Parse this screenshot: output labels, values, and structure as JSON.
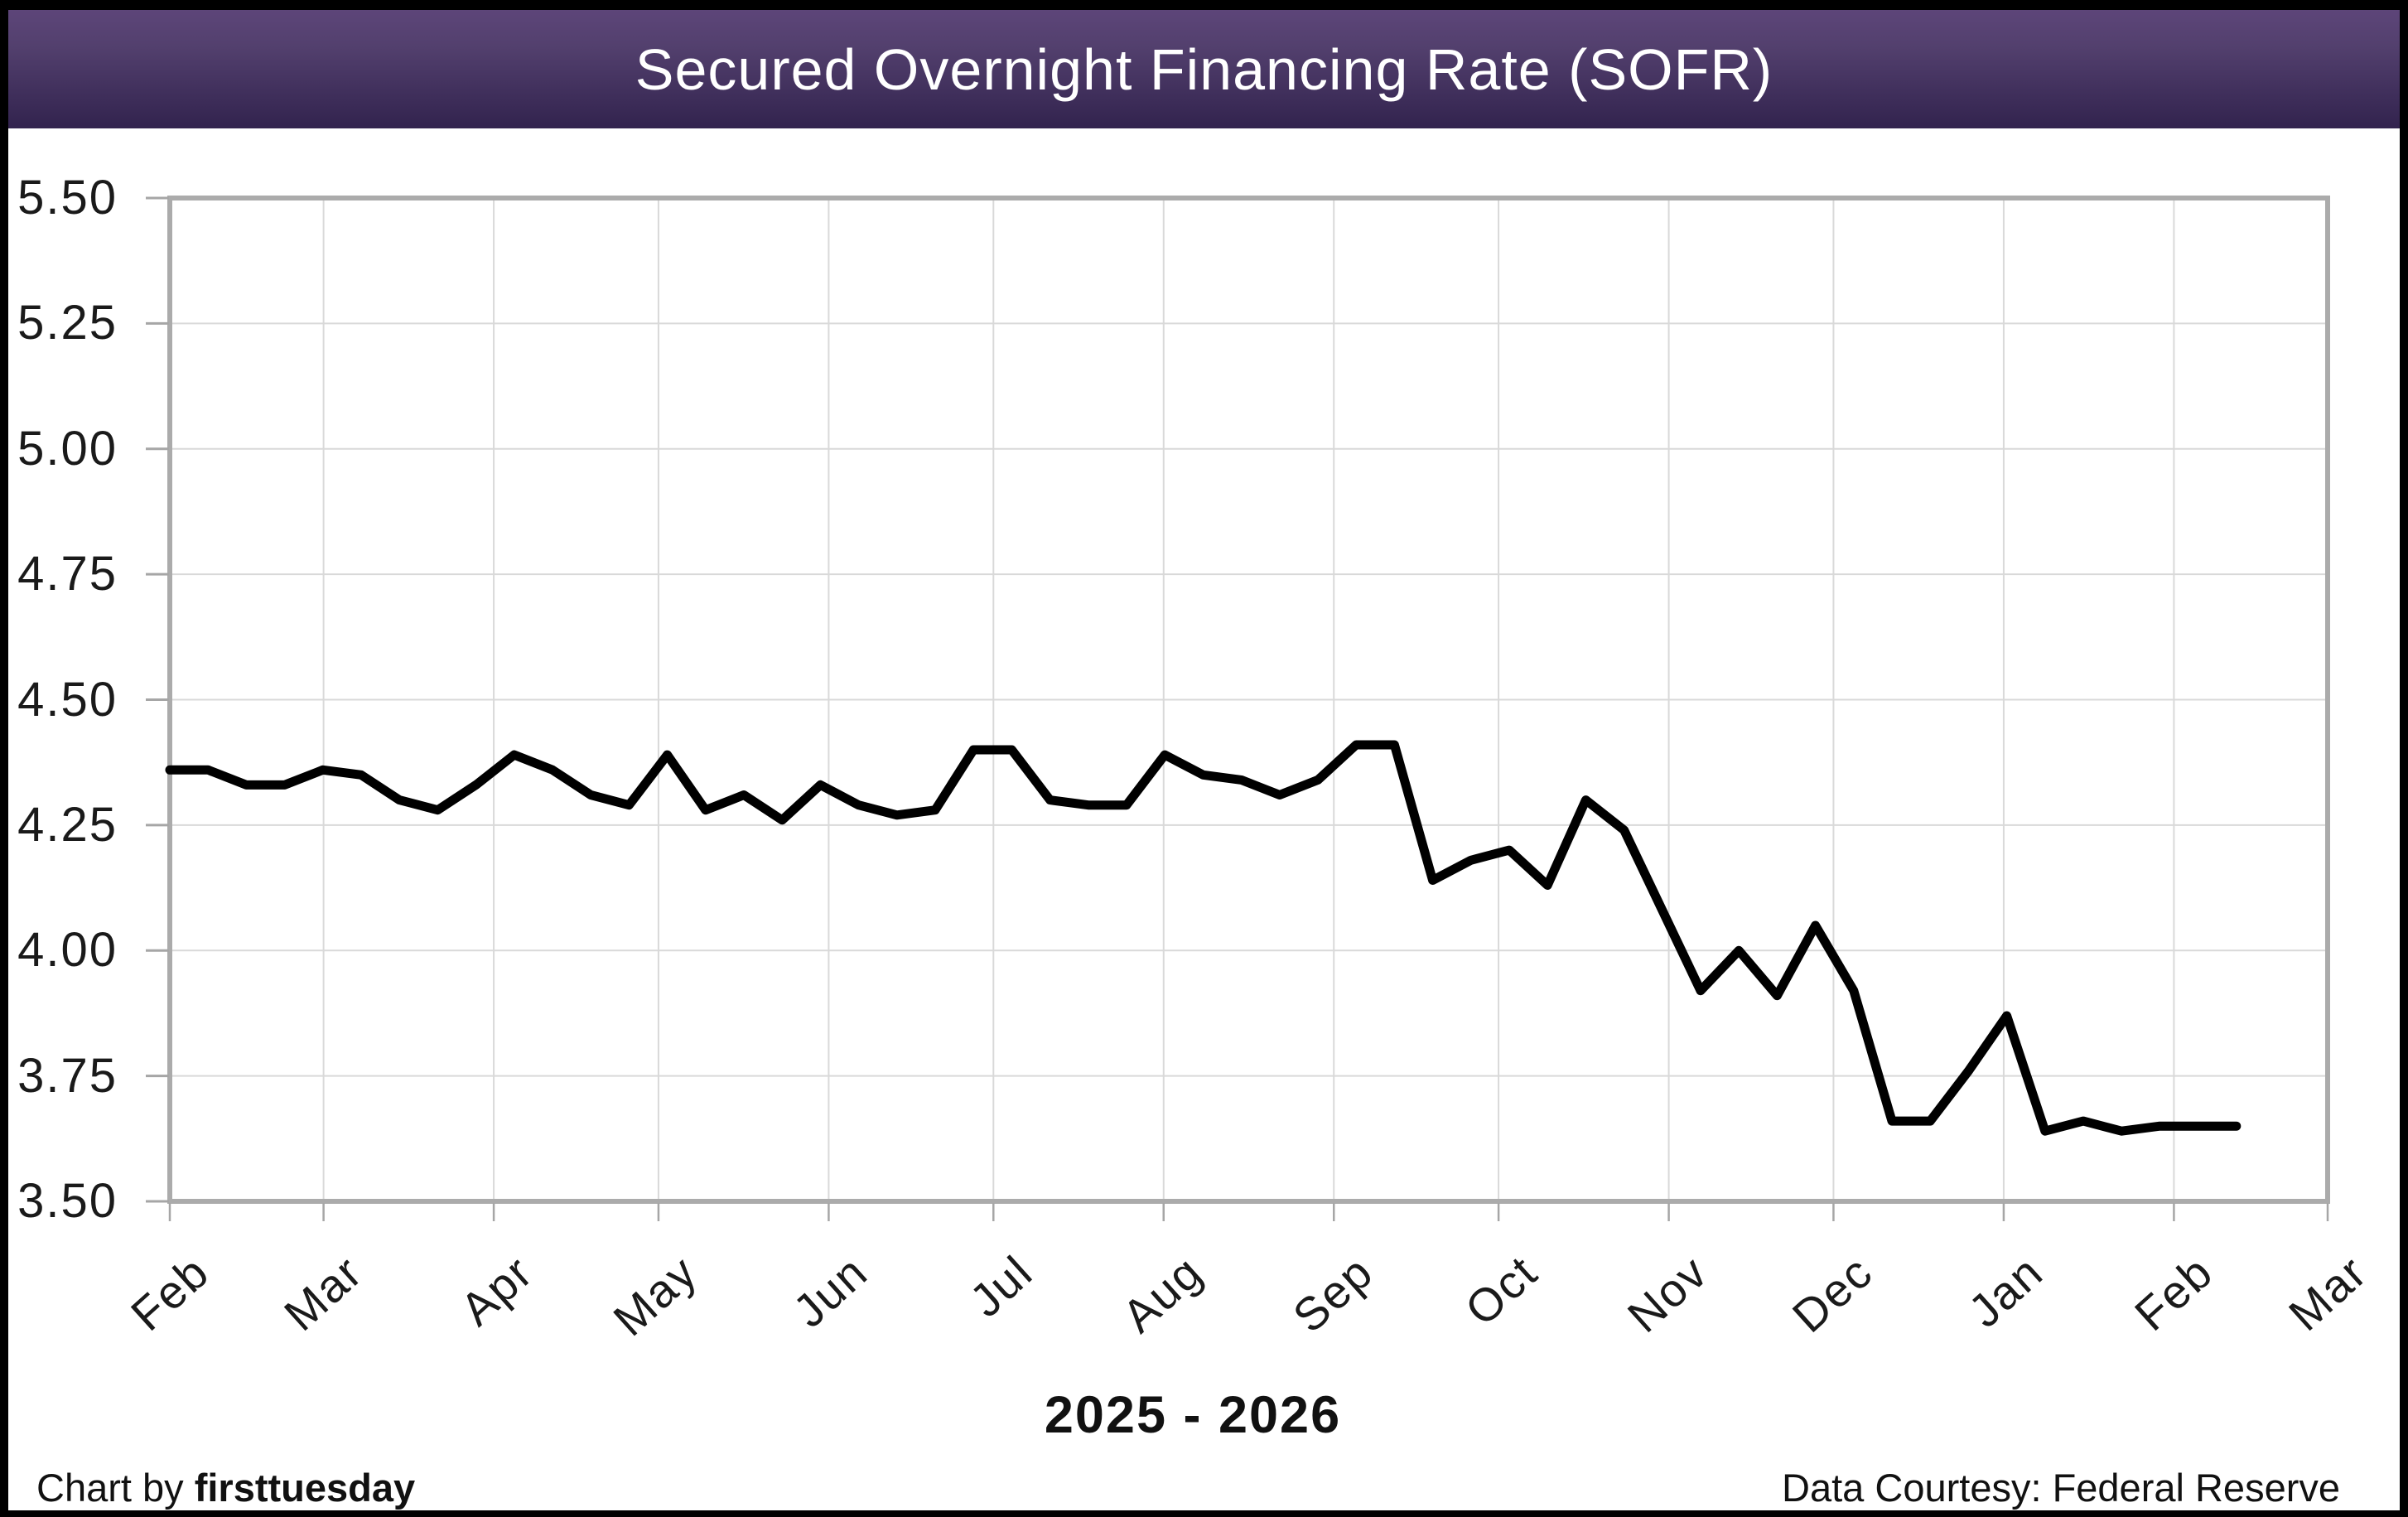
{
  "title_bar": {
    "title": "Secured Overnight Financing Rate (SOFR)",
    "text_color": "#ffffff",
    "bg_gradient_top": "#5d4579",
    "bg_gradient_mid": "#53406e",
    "bg_gradient_bottom": "#32234e",
    "frame_color": "#000000"
  },
  "footer": {
    "period_label": "2025 - 2026",
    "credit_prefix": "Chart by ",
    "credit_brand": "firsttuesday",
    "data_courtesy": "Data Courtesy: Federal Reserve"
  },
  "chart_data": {
    "type": "line",
    "title": "Secured Overnight Financing Rate (SOFR)",
    "xlabel": "2025 - 2026",
    "ylabel": "",
    "x_tick_labels": [
      "Feb",
      "Mar",
      "Apr",
      "May",
      "Jun",
      "Jul",
      "Aug",
      "Sep",
      "Oct",
      "Nov",
      "Dec",
      "Jan",
      "Feb",
      "Mar"
    ],
    "x_range_note": "monthly ticks from Feb 2025 through Mar 2026, data points weekly",
    "y_tick_labels": [
      "5.50",
      "5.25",
      "5.00",
      "4.75",
      "4.50",
      "4.25",
      "4.00",
      "3.75",
      "3.50"
    ],
    "ylim": [
      3.5,
      5.5
    ],
    "y_step": 0.25,
    "grid": true,
    "legend_position": "none",
    "line_color": "#000000",
    "grid_color": "#d9d9d9",
    "axis_border_color": "#ababab",
    "tick_color": "#a6a6a6",
    "series": [
      {
        "name": "SOFR (%)",
        "frequency": "weekly",
        "values": [
          4.36,
          4.36,
          4.33,
          4.33,
          4.36,
          4.35,
          4.3,
          4.28,
          4.33,
          4.39,
          4.36,
          4.31,
          4.29,
          4.39,
          4.28,
          4.31,
          4.26,
          4.33,
          4.29,
          4.27,
          4.28,
          4.4,
          4.4,
          4.3,
          4.29,
          4.29,
          4.39,
          4.35,
          4.34,
          4.31,
          4.34,
          4.41,
          4.41,
          4.14,
          4.18,
          4.2,
          4.13,
          4.3,
          4.24,
          4.08,
          3.92,
          4.0,
          3.91,
          4.05,
          3.92,
          3.66,
          3.66,
          3.76,
          3.87,
          3.64,
          3.66,
          3.64,
          3.65,
          3.65,
          3.65
        ]
      }
    ]
  }
}
